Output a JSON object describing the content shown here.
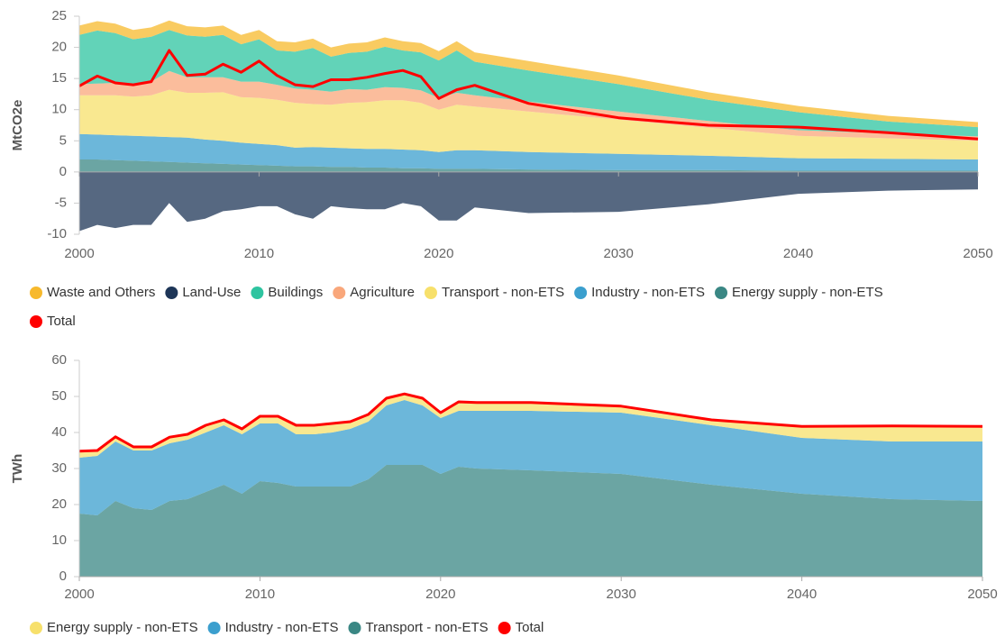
{
  "chart_data": [
    {
      "type": "area",
      "y_label": "MtCO2e",
      "x": [
        2000,
        2001,
        2002,
        2003,
        2004,
        2005,
        2006,
        2007,
        2008,
        2009,
        2010,
        2011,
        2012,
        2013,
        2014,
        2015,
        2016,
        2017,
        2018,
        2019,
        2020,
        2021,
        2022,
        2025,
        2030,
        2035,
        2040,
        2045,
        2050
      ],
      "xlim": [
        2000,
        2050
      ],
      "xticks": [
        2000,
        2010,
        2020,
        2030,
        2040,
        2050
      ],
      "ylim": [
        -10,
        25
      ],
      "yticks": [
        -10,
        -5,
        0,
        5,
        10,
        15,
        20,
        25
      ],
      "series": [
        {
          "name": "Waste and Others",
          "color": "#f7b92c",
          "values": [
            1.5,
            1.5,
            1.5,
            1.5,
            1.5,
            1.5,
            1.5,
            1.5,
            1.5,
            1.5,
            1.5,
            1.5,
            1.5,
            1.5,
            1.5,
            1.5,
            1.5,
            1.5,
            1.5,
            1.5,
            1.5,
            1.5,
            1.5,
            1.5,
            1.4,
            1.2,
            1.0,
            0.9,
            0.8
          ]
        },
        {
          "name": "Land-Use",
          "color": "#1d3557",
          "values": [
            -9.5,
            -8.5,
            -9,
            -8.5,
            -8.5,
            -5,
            -8,
            -7.5,
            -6.3,
            -6,
            -5.5,
            -5.5,
            -6.8,
            -7.5,
            -5.5,
            -5.8,
            -6,
            -6,
            -5,
            -5.5,
            -7.8,
            -7.8,
            -5.7,
            -6.6,
            -6.4,
            -5.2,
            -3.5,
            -3.0,
            -2.8
          ]
        },
        {
          "name": "Buildings",
          "color": "#2ec4a0",
          "values": [
            7.9,
            8.5,
            8.0,
            7.1,
            7.2,
            6.6,
            6.7,
            6.5,
            6.8,
            6.0,
            6.8,
            5.5,
            5.9,
            6.7,
            5.6,
            5.8,
            6.1,
            6.5,
            6.0,
            6.1,
            6.0,
            6.8,
            5.4,
            5.0,
            4.4,
            3.4,
            2.9,
            1.9,
            1.5
          ]
        },
        {
          "name": "Agriculture",
          "color": "#f9a77b",
          "values": [
            1.8,
            1.9,
            2.0,
            2.1,
            2.2,
            3.0,
            2.5,
            2.5,
            2.4,
            2.5,
            2.6,
            2.4,
            2.3,
            2.3,
            2.1,
            2.2,
            2.0,
            2.1,
            2.0,
            2.0,
            1.9,
            1.9,
            1.8,
            1.6,
            1.3,
            1.1,
            0.9,
            0.8,
            0.7
          ]
        },
        {
          "name": "Transport - non-ETS",
          "color": "#f7e06b",
          "values": [
            6.2,
            6.3,
            6.4,
            6.3,
            6.6,
            7.6,
            7.2,
            7.5,
            7.8,
            7.3,
            7.4,
            7.3,
            7.2,
            6.9,
            6.9,
            7.3,
            7.5,
            7.8,
            7.9,
            7.6,
            6.8,
            7.3,
            7.0,
            6.5,
            5.5,
            4.5,
            3.6,
            3.3,
            3.0
          ]
        },
        {
          "name": "Industry - non-ETS",
          "color": "#3b9fce",
          "values": [
            4.1,
            4.0,
            4.0,
            4.0,
            4.0,
            4.0,
            4.0,
            3.8,
            3.7,
            3.5,
            3.4,
            3.3,
            3.0,
            3.1,
            3.1,
            3.0,
            3.0,
            3.0,
            3.0,
            2.9,
            2.7,
            3.0,
            3.0,
            2.8,
            2.6,
            2.3,
            2.0,
            1.9,
            1.8
          ]
        },
        {
          "name": "Energy supply - non-ETS",
          "color": "#3a8784",
          "values": [
            2.0,
            2.0,
            1.9,
            1.8,
            1.7,
            1.6,
            1.5,
            1.4,
            1.3,
            1.2,
            1.1,
            1.0,
            0.9,
            0.9,
            0.8,
            0.8,
            0.7,
            0.7,
            0.6,
            0.6,
            0.5,
            0.5,
            0.5,
            0.4,
            0.3,
            0.3,
            0.2,
            0.2,
            0.2
          ]
        },
        {
          "name": "Total",
          "color": "#ff0000",
          "type": "line",
          "values": [
            13.8,
            15.4,
            14.3,
            14.0,
            14.5,
            19.5,
            15.5,
            15.7,
            17.3,
            16.0,
            17.8,
            15.5,
            14.0,
            13.7,
            14.8,
            14.8,
            15.2,
            15.8,
            16.3,
            15.3,
            11.8,
            13.2,
            13.9,
            11.0,
            8.7,
            7.5,
            7.2,
            6.3,
            5.3
          ]
        }
      ]
    },
    {
      "type": "area",
      "y_label": "TWh",
      "x": [
        2000,
        2001,
        2002,
        2003,
        2004,
        2005,
        2006,
        2007,
        2008,
        2009,
        2010,
        2011,
        2012,
        2013,
        2014,
        2015,
        2016,
        2017,
        2018,
        2019,
        2020,
        2021,
        2022,
        2025,
        2030,
        2035,
        2040,
        2045,
        2050
      ],
      "xlim": [
        2000,
        2050
      ],
      "xticks": [
        2000,
        2010,
        2020,
        2030,
        2040,
        2050
      ],
      "ylim": [
        0,
        60
      ],
      "yticks": [
        0,
        10,
        20,
        30,
        40,
        50,
        60
      ],
      "series": [
        {
          "name": "Energy supply - non-ETS",
          "color": "#f7e06b",
          "values": [
            1.8,
            1.5,
            1.3,
            1,
            1,
            1.7,
            1.5,
            2,
            1.5,
            1.5,
            2,
            2,
            2.5,
            2.5,
            2.5,
            2,
            2,
            2,
            1.7,
            2,
            1.5,
            2.5,
            2.3,
            2.3,
            1.8,
            1.5,
            3.2,
            4.3,
            4.2
          ]
        },
        {
          "name": "Industry - non-ETS",
          "color": "#3b9fce",
          "values": [
            15.5,
            16.5,
            16.5,
            16,
            16.5,
            16,
            16.5,
            16.5,
            16.5,
            16.5,
            16,
            16.5,
            14.5,
            14.5,
            15,
            16,
            16,
            16.5,
            18,
            16.5,
            15.5,
            15.5,
            16,
            16.5,
            17,
            16.5,
            15.5,
            16,
            16.5
          ]
        },
        {
          "name": "Transport - non-ETS",
          "color": "#3a8784",
          "values": [
            17.5,
            17,
            21,
            19,
            18.5,
            21,
            21.5,
            23.5,
            25.5,
            23,
            26.5,
            26,
            25,
            25,
            25,
            25,
            27,
            31,
            31,
            31,
            28.5,
            30.5,
            30,
            29.5,
            28.5,
            25.5,
            23,
            21.5,
            21
          ]
        },
        {
          "name": "Total",
          "color": "#ff0000",
          "type": "line",
          "values": [
            34.8,
            35,
            38.8,
            36,
            36,
            38.7,
            39.5,
            42,
            43.5,
            41,
            44.5,
            44.5,
            42,
            42,
            42.5,
            43,
            45,
            49.5,
            50.7,
            49.5,
            45.5,
            48.5,
            48.3,
            48.3,
            47.3,
            43.5,
            41.7,
            41.8,
            41.7
          ]
        }
      ]
    }
  ]
}
